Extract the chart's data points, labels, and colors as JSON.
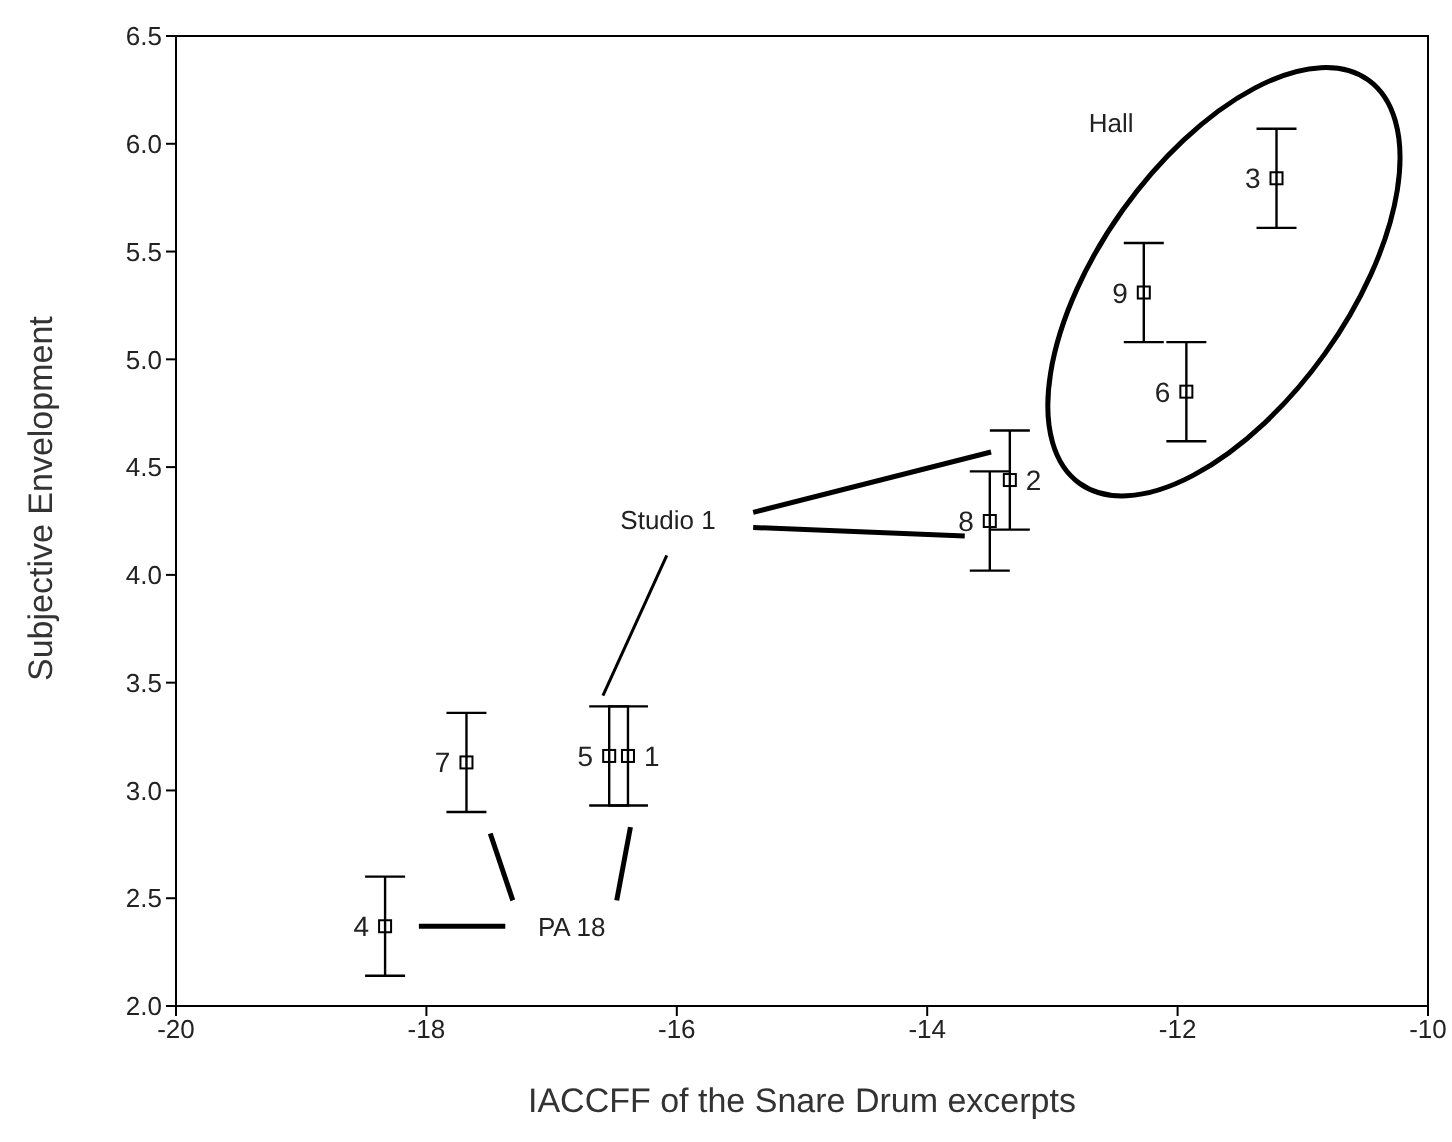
{
  "chart_data": {
    "type": "scatter",
    "xlabel": "IACCFF of the Snare Drum excerpts",
    "ylabel": "Subjective Envelopment",
    "x": [
      -16.39,
      -13.34,
      -11.21,
      -18.33,
      -16.54,
      -11.93,
      -17.68,
      -13.5,
      -12.27
    ],
    "series": [
      {
        "color": "#000000",
        "values": [
          3.16,
          4.44,
          5.84,
          2.37,
          3.16,
          4.85,
          3.13,
          4.25,
          5.31
        ],
        "errors": [
          0.23,
          0.23,
          0.23,
          0.23,
          0.23,
          0.23,
          0.23,
          0.23,
          0.23
        ]
      }
    ],
    "marker": "square",
    "xlim": [
      -20,
      -10
    ],
    "xticks": [
      -20,
      -18,
      -16,
      -14,
      -12,
      -10
    ],
    "ylim": [
      2.0,
      6.5
    ],
    "yticks": [
      {
        "value": 2.0,
        "label": "2.0"
      },
      {
        "value": 2.5,
        "label": "2.5"
      },
      {
        "value": 3.0,
        "label": "3.0"
      },
      {
        "value": 3.5,
        "label": "3.5"
      },
      {
        "value": 4.0,
        "label": "4.0"
      },
      {
        "value": 4.5,
        "label": "4.5"
      },
      {
        "value": 5.0,
        "label": "5.0"
      },
      {
        "value": 5.5,
        "label": "5.5"
      },
      {
        "value": 6.0,
        "label": "6.0"
      },
      {
        "value": 6.5,
        "label": "6.5"
      }
    ],
    "annotations": [
      {
        "text": "1",
        "x": -16.39,
        "y": 3.16
      },
      {
        "text": "2",
        "x": -13.34,
        "y": 4.44
      },
      {
        "text": "3",
        "x": -11.21,
        "y": 5.84
      },
      {
        "text": "4",
        "x": -18.33,
        "y": 2.37
      },
      {
        "text": "5",
        "x": -16.54,
        "y": 3.16
      },
      {
        "text": "6",
        "x": -11.93,
        "y": 4.85
      },
      {
        "text": "7",
        "x": -17.68,
        "y": 3.13
      },
      {
        "text": "8",
        "x": -13.5,
        "y": 4.25
      },
      {
        "text": "9",
        "x": -12.27,
        "y": 5.31
      },
      "Hall",
      "Studio 1",
      "PA 18"
    ]
  }
}
